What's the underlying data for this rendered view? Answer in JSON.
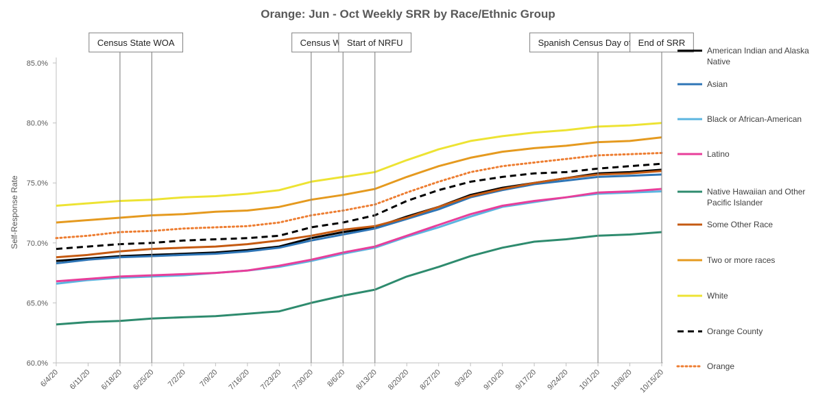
{
  "chart_data": {
    "type": "line",
    "title": "Orange: Jun - Oct Weekly SRR by Race/Ethnic Group",
    "ylabel": "Self-Response Rate",
    "xlabel": "",
    "ylim": [
      60,
      85
    ],
    "y_ticks": [
      "60.0%",
      "65.0%",
      "70.0%",
      "75.0%",
      "80.0%",
      "85.0%"
    ],
    "y_tick_values": [
      60,
      65,
      70,
      75,
      80,
      85
    ],
    "x_tick_labels": [
      "6/4/20",
      "6/11/20",
      "6/18/20",
      "6/25/20",
      "7/2/20",
      "7/9/20",
      "7/16/20",
      "7/23/20",
      "7/30/20",
      "8/6/20",
      "8/13/20",
      "8/20/20",
      "8/27/20",
      "9/3/20",
      "9/10/20",
      "9/17/20",
      "9/24/20",
      "10/1/20",
      "10/8/20",
      "10/15/20"
    ],
    "x": [
      "6/4/20",
      "6/11/20",
      "6/18/20",
      "6/25/20",
      "7/2/20",
      "7/9/20",
      "7/16/20",
      "7/23/20",
      "7/30/20",
      "8/6/20",
      "8/13/20",
      "8/20/20",
      "8/27/20",
      "9/3/20",
      "9/10/20",
      "9/17/20",
      "9/24/20",
      "10/1/20",
      "10/8/20",
      "10/15/20"
    ],
    "grid": false,
    "legend_position": "right",
    "series": [
      {
        "name": "American Indian and Alaska Native",
        "color": "#000000",
        "dash": "solid",
        "values": [
          68.5,
          68.7,
          68.9,
          69.0,
          69.1,
          69.2,
          69.4,
          69.7,
          70.4,
          70.9,
          71.3,
          72.2,
          73.0,
          74.0,
          74.6,
          75.0,
          75.4,
          75.8,
          75.9,
          76.1
        ]
      },
      {
        "name": "Asian",
        "color": "#2E75B6",
        "dash": "solid",
        "values": [
          68.3,
          68.6,
          68.8,
          68.9,
          69.0,
          69.1,
          69.3,
          69.6,
          70.2,
          70.7,
          71.2,
          72.0,
          72.8,
          73.8,
          74.4,
          74.9,
          75.2,
          75.5,
          75.6,
          75.7
        ]
      },
      {
        "name": "Black or African-American",
        "color": "#5BB5E0",
        "dash": "solid",
        "values": [
          66.6,
          66.9,
          67.1,
          67.2,
          67.3,
          67.5,
          67.7,
          68.0,
          68.5,
          69.1,
          69.6,
          70.5,
          71.3,
          72.2,
          73.0,
          73.4,
          73.8,
          74.1,
          74.2,
          74.3
        ]
      },
      {
        "name": "Latino",
        "color": "#E83E9A",
        "dash": "solid",
        "values": [
          66.8,
          67.0,
          67.2,
          67.3,
          67.4,
          67.5,
          67.7,
          68.1,
          68.6,
          69.2,
          69.7,
          70.6,
          71.5,
          72.4,
          73.1,
          73.5,
          73.8,
          74.2,
          74.3,
          74.5
        ]
      },
      {
        "name": "Native Hawaiian and Other Pacific Islander",
        "color": "#2E8B6E",
        "dash": "solid",
        "values": [
          63.2,
          63.4,
          63.5,
          63.7,
          63.8,
          63.9,
          64.1,
          64.3,
          65.0,
          65.6,
          66.1,
          67.2,
          68.0,
          68.9,
          69.6,
          70.1,
          70.3,
          70.6,
          70.7,
          70.9
        ]
      },
      {
        "name": "Some Other Race",
        "color": "#C55A11",
        "dash": "solid",
        "values": [
          68.8,
          69.0,
          69.3,
          69.5,
          69.6,
          69.7,
          69.9,
          70.2,
          70.6,
          71.1,
          71.4,
          72.1,
          73.0,
          73.9,
          74.5,
          75.0,
          75.4,
          75.7,
          75.8,
          76.0
        ]
      },
      {
        "name": "Two or more races",
        "color": "#E59A1F",
        "dash": "solid",
        "values": [
          71.7,
          71.9,
          72.1,
          72.3,
          72.4,
          72.6,
          72.7,
          73.0,
          73.6,
          74.0,
          74.5,
          75.5,
          76.4,
          77.1,
          77.6,
          77.9,
          78.1,
          78.4,
          78.5,
          78.8
        ]
      },
      {
        "name": "White",
        "color": "#EDE333",
        "dash": "solid",
        "values": [
          73.1,
          73.3,
          73.5,
          73.6,
          73.8,
          73.9,
          74.1,
          74.4,
          75.1,
          75.5,
          75.9,
          76.9,
          77.8,
          78.5,
          78.9,
          79.2,
          79.4,
          79.7,
          79.8,
          80.0
        ]
      },
      {
        "name": "Orange County",
        "color": "#000000",
        "dash": "dashed",
        "values": [
          69.5,
          69.7,
          69.9,
          70.0,
          70.2,
          70.3,
          70.4,
          70.6,
          71.3,
          71.7,
          72.3,
          73.5,
          74.4,
          75.1,
          75.5,
          75.8,
          75.9,
          76.2,
          76.4,
          76.6
        ]
      },
      {
        "name": "Orange",
        "color": "#ED7D31",
        "dash": "dotted",
        "values": [
          70.4,
          70.6,
          70.9,
          71.0,
          71.2,
          71.3,
          71.4,
          71.7,
          72.3,
          72.7,
          73.2,
          74.2,
          75.1,
          75.9,
          76.4,
          76.7,
          77.0,
          77.3,
          77.4,
          77.5
        ]
      }
    ],
    "events": [
      {
        "label": "Census State WOA",
        "dates": [
          "6/18/20",
          "6/25/20"
        ]
      },
      {
        "label": "Census WOA",
        "dates": [
          "7/30/20",
          "8/6/20"
        ]
      },
      {
        "label": "Start of NRFU",
        "dates": [
          "8/13/20"
        ]
      },
      {
        "label": "Spanish Census Day of Action",
        "dates": [
          "10/1/20"
        ]
      },
      {
        "label": "End of SRR",
        "dates": [
          "10/15/20"
        ]
      }
    ]
  }
}
